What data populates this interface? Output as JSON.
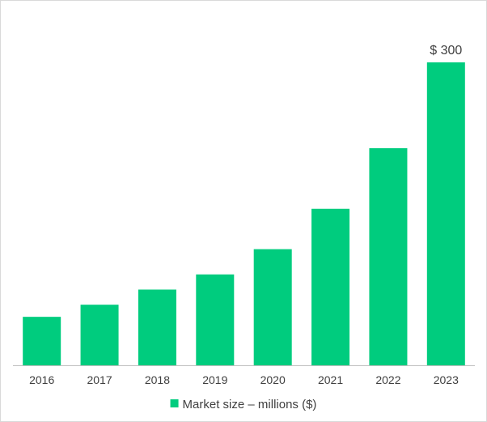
{
  "chart_data": {
    "type": "bar",
    "categories": [
      "2016",
      "2017",
      "2018",
      "2019",
      "2020",
      "2021",
      "2022",
      "2023"
    ],
    "series": [
      {
        "name": "Market size – millions ($)",
        "values": [
          48,
          60,
          75,
          90,
          115,
          155,
          215,
          300
        ],
        "color": "#00cc7e"
      }
    ],
    "data_labels": [
      {
        "category": "2023",
        "text": "$ 300"
      }
    ],
    "title": "",
    "xlabel": "",
    "ylabel": "",
    "ylim": [
      0,
      300
    ],
    "grid": false,
    "legend_position": "bottom",
    "axis_color": "#bfbfbf",
    "text_color": "#404040"
  }
}
